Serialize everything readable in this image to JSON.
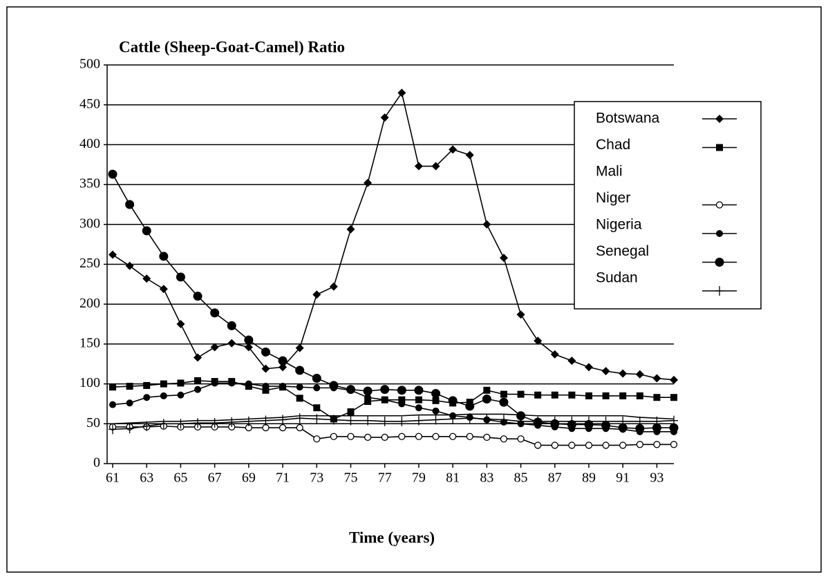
{
  "chart_data": {
    "type": "line",
    "title": "Cattle (Sheep-Goat-Camel) Ratio",
    "xlabel": "Time (years)",
    "x": [
      61,
      62,
      63,
      64,
      65,
      66,
      67,
      68,
      69,
      70,
      71,
      72,
      73,
      74,
      75,
      76,
      77,
      78,
      79,
      80,
      81,
      82,
      83,
      84,
      85,
      86,
      87,
      88,
      89,
      90,
      91,
      92,
      93,
      94
    ],
    "xlim": [
      61,
      94
    ],
    "xticks": [
      61,
      63,
      65,
      67,
      69,
      71,
      73,
      75,
      77,
      79,
      81,
      83,
      85,
      87,
      89,
      91,
      93
    ],
    "ylim": [
      0,
      500
    ],
    "yticks": [
      0,
      50,
      100,
      150,
      200,
      250,
      300,
      350,
      400,
      450,
      500
    ],
    "grid": true,
    "legend": "right",
    "series": [
      {
        "name": "Botswana",
        "color": "#000000",
        "marker": "diamond",
        "values": [
          262,
          248,
          232,
          219,
          175,
          133,
          146,
          151,
          146,
          119,
          121,
          145,
          212,
          222,
          294,
          352,
          434,
          465,
          373,
          373,
          394,
          387,
          300,
          258,
          187,
          154,
          137,
          129,
          121,
          116,
          113,
          112,
          107,
          105
        ]
      },
      {
        "name": "Chad",
        "color": "#000000",
        "marker": "square",
        "values": [
          96,
          97,
          98,
          100,
          101,
          104,
          103,
          103,
          97,
          92,
          96,
          82,
          70,
          56,
          65,
          78,
          80,
          80,
          80,
          79,
          76,
          77,
          92,
          87,
          87,
          86,
          86,
          86,
          85,
          85,
          85,
          85,
          83,
          83
        ]
      },
      {
        "name": "Mali",
        "color": "#000000",
        "marker": "none",
        "values": [
          50,
          51,
          52,
          53,
          53,
          54,
          54,
          55,
          56,
          57,
          58,
          60,
          60,
          60,
          60,
          60,
          60,
          60,
          61,
          61,
          61,
          62,
          62,
          62,
          61,
          60,
          60,
          60,
          60,
          60,
          60,
          58,
          57,
          56
        ]
      },
      {
        "name": "Niger",
        "color": "#000000",
        "marker": "open-circle",
        "values": [
          46,
          46,
          46,
          47,
          46,
          46,
          46,
          46,
          45,
          45,
          45,
          45,
          31,
          34,
          34,
          33,
          33,
          34,
          34,
          34,
          34,
          34,
          33,
          31,
          31,
          23,
          23,
          23,
          23,
          23,
          23,
          24,
          24,
          24
        ]
      },
      {
        "name": "Nigeria",
        "color": "#000000",
        "marker": "small-circle",
        "values": [
          74,
          76,
          83,
          85,
          86,
          93,
          101,
          101,
          100,
          97,
          97,
          96,
          95,
          95,
          92,
          83,
          80,
          75,
          70,
          66,
          60,
          58,
          55,
          52,
          50,
          48,
          46,
          44,
          44,
          44,
          43,
          40,
          40,
          40
        ]
      },
      {
        "name": "Senegal",
        "color": "#000000",
        "marker": "circle",
        "values": [
          363,
          325,
          292,
          260,
          234,
          210,
          189,
          173,
          155,
          140,
          129,
          117,
          107,
          98,
          93,
          91,
          93,
          92,
          92,
          88,
          79,
          72,
          81,
          77,
          60,
          52,
          50,
          49,
          49,
          48,
          45,
          44,
          45,
          45
        ]
      },
      {
        "name": "Sudan",
        "color": "#000000",
        "marker": "plus",
        "values": [
          43,
          44,
          47,
          50,
          50,
          51,
          51,
          52,
          53,
          54,
          55,
          57,
          56,
          55,
          54,
          54,
          53,
          53,
          54,
          55,
          56,
          57,
          56,
          55,
          53,
          53,
          53,
          53,
          53,
          53,
          53,
          53,
          53,
          54
        ]
      }
    ]
  }
}
